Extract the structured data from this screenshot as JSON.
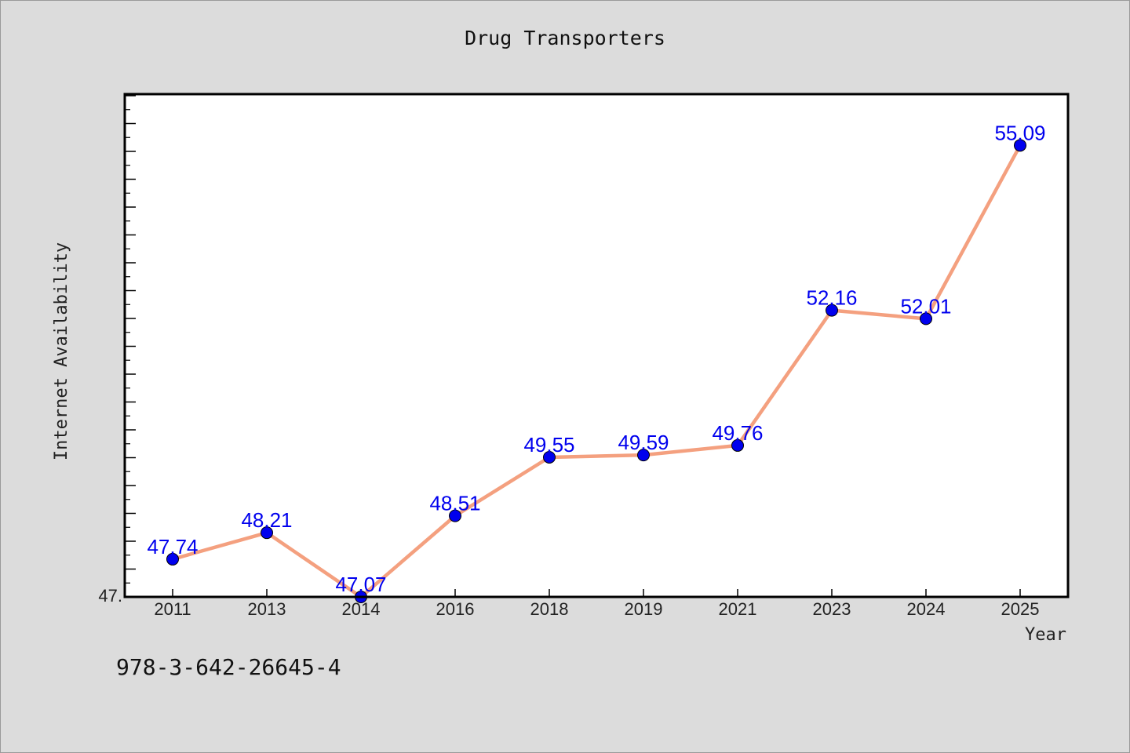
{
  "chart_data": {
    "type": "line",
    "title": "Drug Transporters",
    "xlabel": "Year",
    "ylabel": "Internet Availability",
    "categories": [
      "2011",
      "2013",
      "2014",
      "2016",
      "2018",
      "2019",
      "2021",
      "2023",
      "2024",
      "2025"
    ],
    "values": [
      47.74,
      48.21,
      47.07,
      48.51,
      49.55,
      49.59,
      49.76,
      52.16,
      52.01,
      55.09
    ],
    "data_labels": [
      "47.74",
      "48.21",
      "47.07",
      "48.51",
      "49.55",
      "49.59",
      "49.76",
      "52.16",
      "52.01",
      "55.09"
    ],
    "y_tick_label": "47.",
    "ylim": [
      47.07,
      56.0
    ],
    "grid": false,
    "colors": {
      "line": "#f4a07f",
      "marker": "#0000ee",
      "label": "#0000ee",
      "plot_bg": "#ffffff",
      "page_bg": "#dcdcdc"
    }
  },
  "footer": {
    "isbn": "978-3-642-26645-4"
  }
}
